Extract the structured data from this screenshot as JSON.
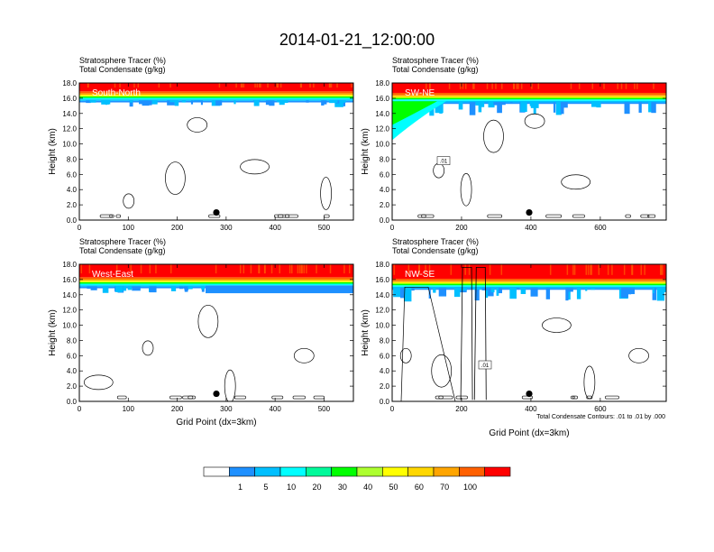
{
  "figure": {
    "title": "2014-01-21_12:00:00",
    "contour_note": "Total Condensate Contours: .01 to .01 by .000",
    "contour_label": ".01"
  },
  "colorbar": {
    "labels": [
      "1",
      "5",
      "10",
      "20",
      "30",
      "40",
      "50",
      "60",
      "70",
      "100"
    ],
    "colors": [
      "#ffffff",
      "#1e90ff",
      "#00bfff",
      "#00ffff",
      "#00fa9a",
      "#00ff00",
      "#adff2f",
      "#ffff00",
      "#ffd700",
      "#ffa500",
      "#ff6000",
      "#ff0000"
    ]
  },
  "chart_data": [
    {
      "type": "heatmap",
      "panel_label": "South-North",
      "subtitle1": "Stratosphere Tracer   (%)",
      "subtitle2": "Total Condensate   (g/kg)",
      "ylabel": "Height (km)",
      "xlabel": "",
      "xlim": [
        0,
        560
      ],
      "ylim": [
        0,
        18
      ],
      "xticks": [
        "0",
        "100",
        "200",
        "300",
        "400",
        "500"
      ],
      "yticks": [
        "0.0",
        "2.0",
        "4.0",
        "6.0",
        "8.0",
        "10.0",
        "12.0",
        "14.0",
        "16.0",
        "18.0"
      ],
      "tracer_base_km": 15.8,
      "marker": {
        "x": 280,
        "y": 1.0
      }
    },
    {
      "type": "heatmap",
      "panel_label": "SW-NE",
      "subtitle1": "Stratosphere Tracer   (%)",
      "subtitle2": "Total Condensate   (g/kg)",
      "ylabel": "Height (km)",
      "xlabel": "",
      "xlim": [
        0,
        790
      ],
      "ylim": [
        0,
        18
      ],
      "xticks": [
        "0",
        "200",
        "400",
        "600"
      ],
      "yticks": [
        "0.0",
        "2.0",
        "4.0",
        "6.0",
        "8.0",
        "10.0",
        "12.0",
        "14.0",
        "16.0",
        "18.0"
      ],
      "tracer_base_km": 15.6,
      "marker": {
        "x": 395,
        "y": 1.0
      }
    },
    {
      "type": "heatmap",
      "panel_label": "West-East",
      "subtitle1": "Stratosphere Tracer   (%)",
      "subtitle2": "Total Condensate   (g/kg)",
      "ylabel": "Height (km)",
      "xlabel": "Grid Point (dx=3km)",
      "xlim": [
        0,
        560
      ],
      "ylim": [
        0,
        18
      ],
      "xticks": [
        "0",
        "100",
        "200",
        "300",
        "400",
        "500"
      ],
      "yticks": [
        "0.0",
        "2.0",
        "4.0",
        "6.0",
        "8.0",
        "10.0",
        "12.0",
        "14.0",
        "16.0",
        "18.0"
      ],
      "tracer_base_km": 15.2,
      "marker": {
        "x": 280,
        "y": 1.0
      }
    },
    {
      "type": "heatmap",
      "panel_label": "NW-SE",
      "subtitle1": "Stratosphere Tracer   (%)",
      "subtitle2": "Total Condensate   (g/kg)",
      "ylabel": "Height (km)",
      "xlabel": "Grid Point (dx=3km)",
      "xlim": [
        0,
        790
      ],
      "ylim": [
        0,
        18
      ],
      "xticks": [
        "0",
        "200",
        "400",
        "600"
      ],
      "yticks": [
        "0.0",
        "2.0",
        "4.0",
        "6.0",
        "8.0",
        "10.0",
        "12.0",
        "14.0",
        "16.0",
        "18.0"
      ],
      "tracer_base_km": 15.0,
      "marker": {
        "x": 395,
        "y": 1.0
      }
    }
  ]
}
